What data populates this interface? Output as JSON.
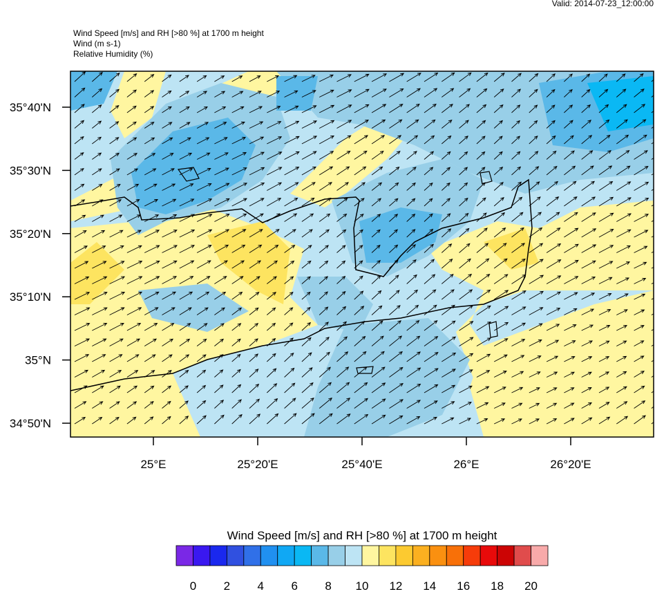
{
  "header": {
    "valid": "Valid: 2014-07-23_12:00:00",
    "title_lines": [
      "Wind Speed [m/s] and RH [>80 %] at 1700 m height",
      "Wind   (m s-1)",
      "Relative Humidity   (%)"
    ]
  },
  "map": {
    "latitude_labels": [
      "35°40'N",
      "35°30'N",
      "35°20'N",
      "35°10'N",
      "35°N",
      "34°50'N"
    ],
    "longitude_labels": [
      "25°E",
      "25°20'E",
      "25°40'E",
      "26°E",
      "26°20'E"
    ]
  },
  "colorbar": {
    "title": "Wind Speed [m/s] and RH [>80 %] at 1700 m height",
    "colors": [
      "#7a28e6",
      "#3a18f0",
      "#1a28ee",
      "#3050e0",
      "#3070e8",
      "#2090f0",
      "#10a8f4",
      "#0ab8f4",
      "#5ab8e8",
      "#98cfe8",
      "#bde4f4",
      "#fff6a0",
      "#fde460",
      "#fcca30",
      "#fbb020",
      "#fa9010",
      "#f87008",
      "#f63c0a",
      "#e80a0a",
      "#cc0404",
      "#e04c4c",
      "#f8aaaa"
    ],
    "labels": [
      "0",
      "2",
      "4",
      "6",
      "8",
      "10",
      "12",
      "14",
      "16",
      "18",
      "20"
    ]
  }
}
